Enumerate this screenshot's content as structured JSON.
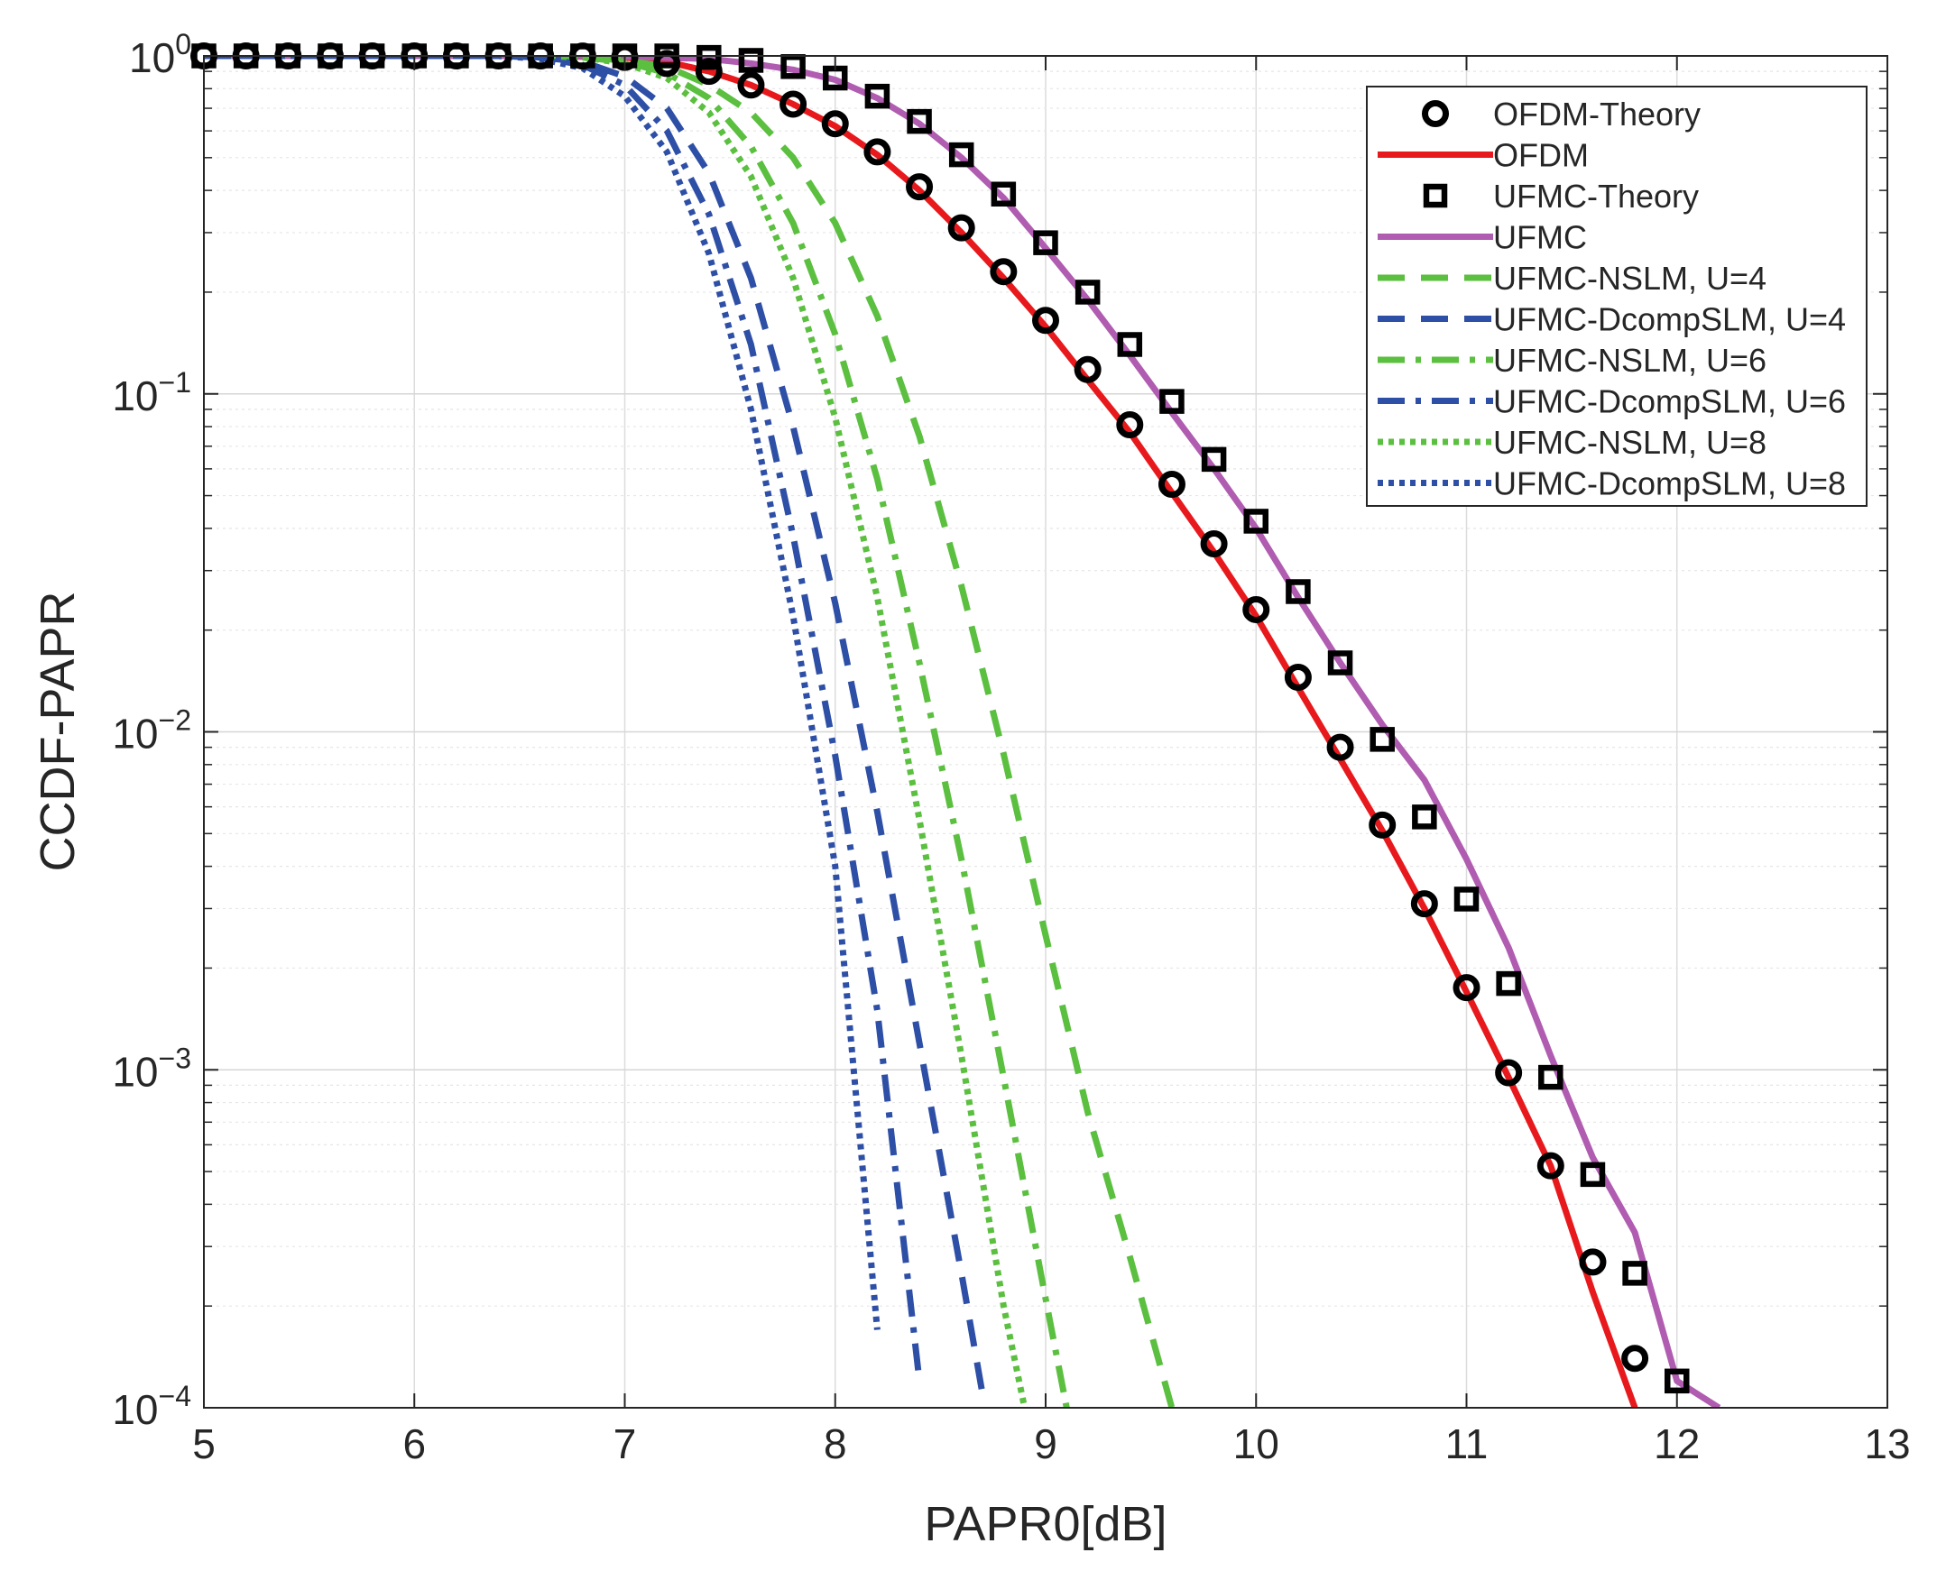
{
  "chart_data": {
    "type": "line",
    "title": "",
    "xlabel": "PAPR0[dB]",
    "ylabel": "CCDF-PAPR",
    "xlim": [
      5,
      13
    ],
    "ylim": [
      0.0001,
      1
    ],
    "yscale": "log",
    "grid": true,
    "minor_grid": true,
    "legend_position": "top-right",
    "xticks": [
      5,
      6,
      7,
      8,
      9,
      10,
      11,
      12,
      13
    ],
    "xtick_labels": [
      "5",
      "6",
      "7",
      "8",
      "9",
      "10",
      "11",
      "12",
      "13"
    ],
    "yticks": [
      1,
      0.1,
      0.01,
      0.001,
      0.0001
    ],
    "ytick_labels": [
      {
        "base": "10",
        "exp": "0"
      },
      {
        "base": "10",
        "exp": "−1"
      },
      {
        "base": "10",
        "exp": "−2"
      },
      {
        "base": "10",
        "exp": "−3"
      },
      {
        "base": "10",
        "exp": "−4"
      }
    ],
    "series": [
      {
        "name": "OFDM-Theory",
        "color": "#000000",
        "style": "marker",
        "marker": "circle",
        "x": [
          5,
          5.2,
          5.4,
          5.6,
          5.8,
          6,
          6.2,
          6.4,
          6.6,
          6.8,
          7,
          7.2,
          7.4,
          7.6,
          7.8,
          8,
          8.2,
          8.4,
          8.6,
          8.8,
          9,
          9.2,
          9.4,
          9.6,
          9.8,
          10,
          10.2,
          10.4,
          10.6,
          10.8,
          11,
          11.2,
          11.4,
          11.6,
          11.8
        ],
        "y": [
          1,
          1,
          1,
          1,
          1,
          1,
          1,
          1,
          1,
          0.999,
          0.99,
          0.95,
          0.9,
          0.82,
          0.72,
          0.63,
          0.52,
          0.41,
          0.31,
          0.23,
          0.165,
          0.118,
          0.081,
          0.054,
          0.036,
          0.023,
          0.0145,
          0.009,
          0.0053,
          0.0031,
          0.00175,
          0.00098,
          0.00052,
          0.00027,
          0.00014
        ]
      },
      {
        "name": "OFDM",
        "color": "#e8191c",
        "style": "solid",
        "x": [
          5,
          6.6,
          7,
          7.2,
          7.4,
          7.6,
          7.8,
          8,
          8.2,
          8.4,
          8.6,
          8.8,
          9,
          9.2,
          9.4,
          9.6,
          9.8,
          10,
          10.2,
          10.4,
          10.6,
          10.8,
          11,
          11.2,
          11.4,
          11.6,
          11.8
        ],
        "y": [
          1,
          1,
          0.99,
          0.96,
          0.9,
          0.82,
          0.72,
          0.62,
          0.51,
          0.4,
          0.3,
          0.22,
          0.158,
          0.11,
          0.077,
          0.051,
          0.034,
          0.022,
          0.0135,
          0.0083,
          0.0051,
          0.003,
          0.0017,
          0.00095,
          0.00052,
          0.00022,
          0.0001
        ]
      },
      {
        "name": "UFMC-Theory",
        "color": "#000000",
        "style": "marker",
        "marker": "square",
        "x": [
          5,
          5.2,
          5.4,
          5.6,
          5.8,
          6,
          6.2,
          6.4,
          6.6,
          6.8,
          7,
          7.2,
          7.4,
          7.6,
          7.8,
          8,
          8.2,
          8.4,
          8.6,
          8.8,
          9,
          9.2,
          9.4,
          9.6,
          9.8,
          10,
          10.2,
          10.4,
          10.6,
          10.8,
          11,
          11.2,
          11.4,
          11.6,
          11.8,
          12
        ],
        "y": [
          1,
          1,
          1,
          1,
          1,
          1,
          1,
          1,
          1,
          1,
          1,
          1,
          0.99,
          0.97,
          0.93,
          0.86,
          0.76,
          0.64,
          0.51,
          0.39,
          0.28,
          0.2,
          0.14,
          0.095,
          0.064,
          0.042,
          0.026,
          0.016,
          0.0095,
          0.0056,
          0.0032,
          0.0018,
          0.00095,
          0.00049,
          0.00025,
          0.00012
        ]
      },
      {
        "name": "UFMC",
        "color": "#b05cb0",
        "style": "solid",
        "x": [
          5,
          6.6,
          7,
          7.4,
          7.6,
          7.8,
          8,
          8.2,
          8.4,
          8.6,
          8.8,
          9,
          9.2,
          9.4,
          9.6,
          9.8,
          10,
          10.2,
          10.4,
          10.6,
          10.8,
          11,
          11.2,
          11.4,
          11.6,
          11.8,
          12,
          12.2
        ],
        "y": [
          1,
          1,
          0.995,
          0.98,
          0.95,
          0.91,
          0.85,
          0.75,
          0.63,
          0.5,
          0.38,
          0.27,
          0.19,
          0.13,
          0.088,
          0.06,
          0.04,
          0.025,
          0.016,
          0.0105,
          0.0072,
          0.0042,
          0.0023,
          0.0011,
          0.00055,
          0.00033,
          0.00012,
          0.0001
        ]
      },
      {
        "name": "UFMC-NSLM, U=4",
        "color": "#5bbf3f",
        "style": "dashed",
        "x": [
          5,
          6.6,
          6.8,
          7,
          7.2,
          7.4,
          7.6,
          7.8,
          8,
          8.2,
          8.4,
          8.6,
          8.8,
          9,
          9.2,
          9.4,
          9.6
        ],
        "y": [
          1,
          1,
          0.99,
          0.97,
          0.93,
          0.82,
          0.68,
          0.5,
          0.32,
          0.17,
          0.075,
          0.027,
          0.0086,
          0.0025,
          0.00075,
          0.00028,
          0.0001
        ]
      },
      {
        "name": "UFMC-DcompSLM, U=4",
        "color": "#2e4fa6",
        "style": "dashed",
        "x": [
          5,
          6.4,
          6.6,
          6.8,
          7,
          7.2,
          7.4,
          7.6,
          7.8,
          8,
          8.2,
          8.4,
          8.6,
          8.7
        ],
        "y": [
          1,
          1,
          0.99,
          0.96,
          0.87,
          0.7,
          0.45,
          0.22,
          0.08,
          0.024,
          0.0058,
          0.0012,
          0.00025,
          0.00011
        ]
      },
      {
        "name": "UFMC-NSLM, U=6",
        "color": "#5bbf3f",
        "style": "dashdot",
        "x": [
          5,
          6.6,
          6.8,
          7,
          7.2,
          7.4,
          7.6,
          7.8,
          8,
          8.2,
          8.4,
          8.6,
          8.8,
          9,
          9.1
        ],
        "y": [
          1,
          1,
          0.99,
          0.96,
          0.89,
          0.75,
          0.54,
          0.32,
          0.15,
          0.056,
          0.016,
          0.0042,
          0.00095,
          0.00021,
          0.0001
        ]
      },
      {
        "name": "UFMC-DcompSLM, U=6",
        "color": "#2e4fa6",
        "style": "dashdot",
        "x": [
          5,
          6.4,
          6.6,
          6.8,
          7,
          7.2,
          7.4,
          7.6,
          7.8,
          8,
          8.2,
          8.4
        ],
        "y": [
          1,
          1,
          0.99,
          0.94,
          0.82,
          0.6,
          0.34,
          0.14,
          0.038,
          0.0085,
          0.0015,
          0.00012
        ]
      },
      {
        "name": "UFMC-NSLM, U=8",
        "color": "#5bbf3f",
        "style": "dotted",
        "x": [
          5,
          6.6,
          6.8,
          7,
          7.2,
          7.4,
          7.6,
          7.8,
          8,
          8.2,
          8.4,
          8.6,
          8.8,
          8.9
        ],
        "y": [
          1,
          1,
          0.99,
          0.95,
          0.86,
          0.68,
          0.44,
          0.22,
          0.085,
          0.025,
          0.0055,
          0.0011,
          0.0002,
          0.0001
        ]
      },
      {
        "name": "UFMC-DcompSLM, U=8",
        "color": "#2e4fa6",
        "style": "dotted",
        "x": [
          5,
          6.4,
          6.6,
          6.8,
          7,
          7.2,
          7.4,
          7.6,
          7.8,
          8,
          8.2
        ],
        "y": [
          1,
          1,
          0.98,
          0.92,
          0.76,
          0.52,
          0.26,
          0.09,
          0.022,
          0.004,
          0.00017
        ]
      }
    ]
  }
}
